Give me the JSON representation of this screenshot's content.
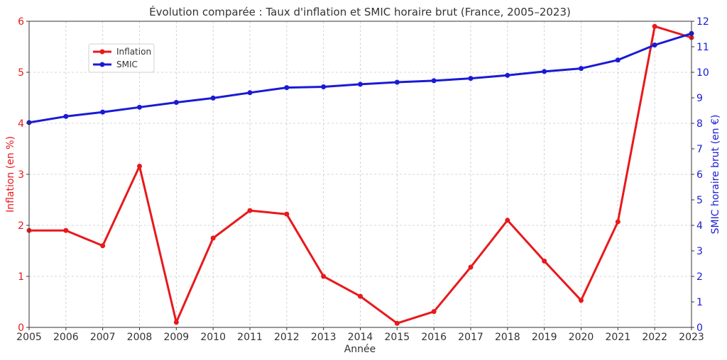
{
  "chart_data": {
    "type": "line",
    "title": "Évolution comparée : Taux d'inflation et SMIC horaire brut (France, 2005–2023)",
    "xlabel": "Année",
    "x": [
      2005,
      2006,
      2007,
      2008,
      2009,
      2010,
      2011,
      2012,
      2013,
      2014,
      2015,
      2016,
      2017,
      2018,
      2019,
      2020,
      2021,
      2022,
      2023
    ],
    "xlim": [
      2005,
      2023
    ],
    "y_left": {
      "label": "Inflation (en %)",
      "ylim": [
        0,
        6
      ],
      "ticks": [
        0,
        1,
        2,
        3,
        4,
        5,
        6
      ],
      "color": "#e8191c"
    },
    "y_right": {
      "label": "SMIC horaire brut (en €)",
      "ylim": [
        0,
        12
      ],
      "ticks": [
        0,
        1,
        2,
        3,
        4,
        5,
        6,
        7,
        8,
        9,
        10,
        11,
        12
      ],
      "color": "#1a1ad6"
    },
    "series": [
      {
        "name": "Inflation",
        "axis": "left",
        "color": "#e8191c",
        "values": [
          1.9,
          1.9,
          1.6,
          3.16,
          0.1,
          1.75,
          2.29,
          2.22,
          1.0,
          0.61,
          0.08,
          0.31,
          1.18,
          2.1,
          1.3,
          0.53,
          2.07,
          5.9,
          5.68
        ]
      },
      {
        "name": "SMIC",
        "axis": "right",
        "color": "#1a1ad6",
        "values": [
          8.03,
          8.27,
          8.44,
          8.63,
          8.82,
          8.99,
          9.2,
          9.4,
          9.43,
          9.53,
          9.61,
          9.67,
          9.76,
          9.88,
          10.03,
          10.15,
          10.48,
          11.07,
          11.52
        ]
      }
    ],
    "legend": {
      "placement": "upper-left"
    },
    "grid": true
  }
}
